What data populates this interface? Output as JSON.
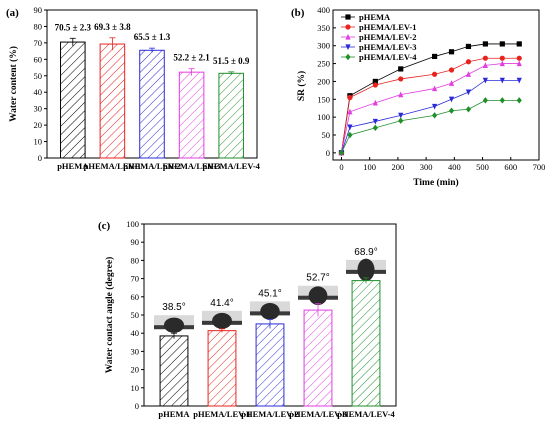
{
  "chart_data": [
    {
      "panel": "(a)",
      "type": "bar",
      "categories": [
        "pHEMA",
        "pHEMA/LEV-1",
        "pHEMA/LEV-2",
        "pHEMA/LEV-3",
        "pHEMA/LEV-4"
      ],
      "values": [
        70.5,
        69.3,
        65.5,
        52.2,
        51.5
      ],
      "errors": [
        2.3,
        3.8,
        1.3,
        2.1,
        0.9
      ],
      "annotations": [
        "70.5 ± 2.3",
        "69.3 ± 3.8",
        "65.5 ± 1.3",
        "52.2 ± 2.1",
        "51.5 ± 0.9"
      ],
      "colors": [
        "#000000",
        "#e8231e",
        "#2b2bd8",
        "#e23ee2",
        "#1f8f2a"
      ],
      "ylabel": "Water content (%)",
      "xlabel": "",
      "ylim": [
        0,
        90
      ],
      "yticks": [
        0,
        10,
        20,
        30,
        40,
        50,
        60,
        70,
        80,
        90
      ]
    },
    {
      "panel": "(b)",
      "type": "line",
      "xlabel": "Time (min)",
      "ylabel": "SR (%)",
      "xlim": [
        -30,
        700
      ],
      "ylim": [
        -20,
        400
      ],
      "xticks": [
        0,
        100,
        200,
        300,
        400,
        500,
        600,
        700
      ],
      "yticks": [
        0,
        50,
        100,
        150,
        200,
        250,
        300,
        350,
        400
      ],
      "legend_position": "top-left",
      "series": [
        {
          "name": "pHEMA",
          "color": "#000000",
          "marker": "square",
          "x": [
            0,
            30,
            120,
            210,
            330,
            390,
            450,
            510,
            570,
            630
          ],
          "y": [
            0,
            160,
            200,
            235,
            270,
            283,
            298,
            305,
            305,
            305
          ]
        },
        {
          "name": "pHEMA/LEV-1",
          "color": "#e8231e",
          "marker": "circle",
          "x": [
            0,
            30,
            120,
            210,
            330,
            390,
            450,
            510,
            570,
            630
          ],
          "y": [
            0,
            155,
            190,
            207,
            220,
            232,
            255,
            265,
            265,
            265
          ]
        },
        {
          "name": "pHEMA/LEV-2",
          "color": "#e23ee2",
          "marker": "triangle-up",
          "x": [
            0,
            30,
            120,
            210,
            330,
            390,
            450,
            510,
            570,
            630
          ],
          "y": [
            0,
            115,
            140,
            163,
            180,
            195,
            220,
            245,
            250,
            250
          ]
        },
        {
          "name": "pHEMA/LEV-3",
          "color": "#2b2bd8",
          "marker": "triangle-down",
          "x": [
            0,
            30,
            120,
            210,
            330,
            390,
            450,
            510,
            570,
            630
          ],
          "y": [
            0,
            72,
            88,
            105,
            130,
            150,
            170,
            203,
            203,
            203
          ]
        },
        {
          "name": "pHEMA/LEV-4",
          "color": "#1f8f2a",
          "marker": "diamond",
          "x": [
            0,
            30,
            120,
            210,
            330,
            390,
            450,
            510,
            570,
            630
          ],
          "y": [
            0,
            50,
            70,
            90,
            105,
            118,
            122,
            147,
            147,
            147
          ]
        }
      ]
    },
    {
      "panel": "(c)",
      "type": "bar",
      "categories": [
        "pHEMA",
        "pHEMA/LEV-1",
        "pHEMA/LEV-2",
        "pHEMA/LEV-3",
        "pHEMA/LEV-4"
      ],
      "values": [
        38.5,
        41.4,
        45.1,
        52.7,
        68.9
      ],
      "errors": [
        1.5,
        1.0,
        2.5,
        3.5,
        1.5
      ],
      "annotations": [
        "38.5°",
        "41.4°",
        "45.1°",
        "52.7°",
        "68.9°"
      ],
      "colors": [
        "#000000",
        "#e8231e",
        "#2b2bd8",
        "#e23ee2",
        "#1f8f2a"
      ],
      "ylabel": "Water contact angle (degree)",
      "xlabel": "",
      "ylim": [
        0,
        100
      ],
      "yticks": [
        0,
        10,
        20,
        30,
        40,
        50,
        60,
        70,
        80,
        90,
        100
      ]
    }
  ]
}
